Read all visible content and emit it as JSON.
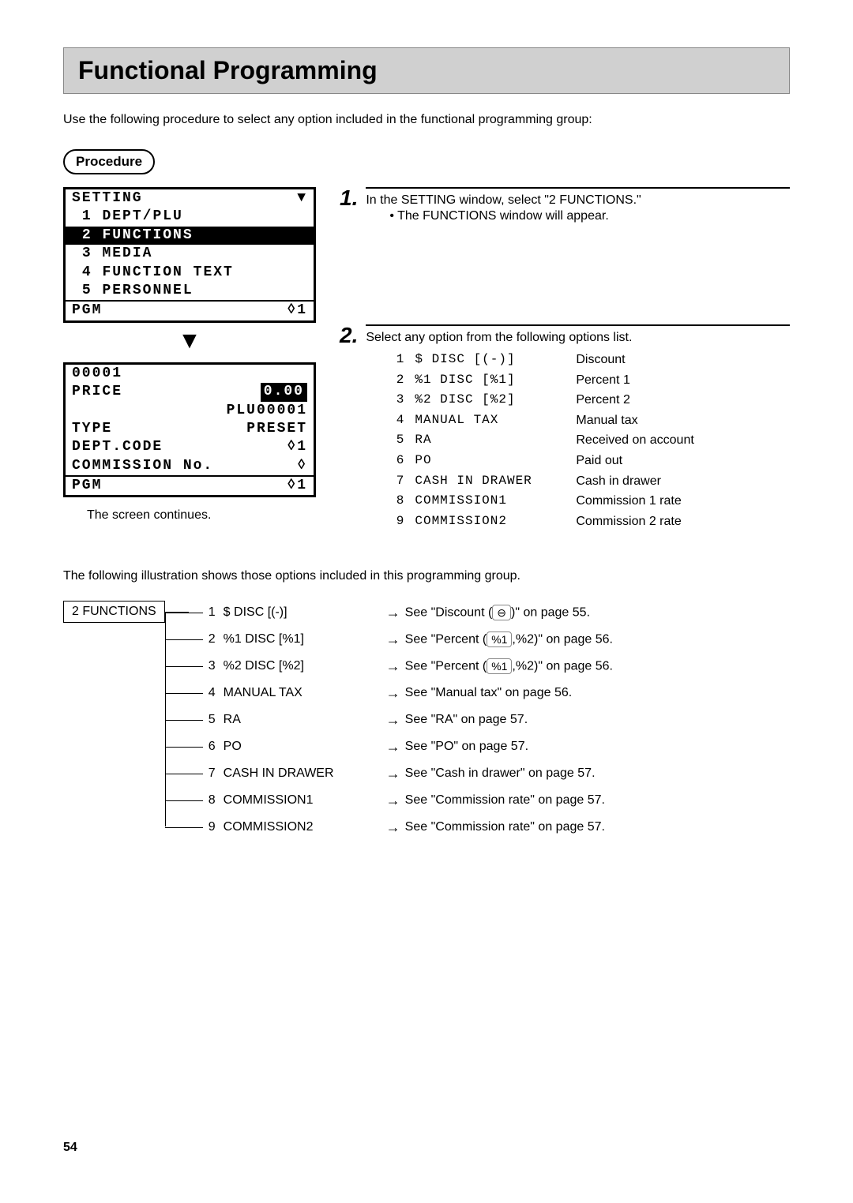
{
  "header": {
    "title": "Functional Programming"
  },
  "intro": "Use the following procedure to select any option included in the functional programming group:",
  "procedure_label": "Procedure",
  "lcd1": {
    "title": "SETTING",
    "arrow_down": "▼",
    "lines": [
      {
        "num": "1",
        "text": "DEPT/PLU",
        "inverse": false
      },
      {
        "num": "2",
        "text": "FUNCTIONS",
        "inverse": true
      },
      {
        "num": "3",
        "text": "MEDIA",
        "inverse": false
      },
      {
        "num": "4",
        "text": "FUNCTION TEXT",
        "inverse": false
      },
      {
        "num": "5",
        "text": "PERSONNEL",
        "inverse": false
      }
    ],
    "footer_left": "PGM",
    "footer_right": "◊1"
  },
  "triangle": "▼",
  "lcd2": {
    "row1_left": "00001",
    "row2_left": "PRICE",
    "row2_right": "0.00",
    "row3_right": "PLU00001",
    "row4_left": "TYPE",
    "row4_right": "PRESET",
    "row5_left": "DEPT.CODE",
    "row5_right": "◊1",
    "row6_left": "COMMISSION No.",
    "row6_right": "◊",
    "footer_left": "PGM",
    "footer_right": "◊1"
  },
  "screen_note": "The screen continues.",
  "step1": {
    "num": "1.",
    "text": "In the SETTING window, select \"2 FUNCTIONS.\"",
    "sub": "• The FUNCTIONS window will appear."
  },
  "step2": {
    "num": "2.",
    "text": "Select any option from the following options list.",
    "options": [
      {
        "idx": "1",
        "code": "$ DISC [(-)]",
        "desc": "Discount"
      },
      {
        "idx": "2",
        "code": "%1 DISC [%1]",
        "desc": "Percent 1"
      },
      {
        "idx": "3",
        "code": "%2 DISC [%2]",
        "desc": "Percent 2"
      },
      {
        "idx": "4",
        "code": "MANUAL TAX",
        "desc": "Manual tax"
      },
      {
        "idx": "5",
        "code": "RA",
        "desc": "Received on account"
      },
      {
        "idx": "6",
        "code": "PO",
        "desc": "Paid out"
      },
      {
        "idx": "7",
        "code": "CASH IN DRAWER",
        "desc": "Cash in drawer"
      },
      {
        "idx": "8",
        "code": "COMMISSION1",
        "desc": "Commission 1 rate"
      },
      {
        "idx": "9",
        "code": "COMMISSION2",
        "desc": "Commission 2 rate"
      }
    ]
  },
  "illus_intro": "The following illustration shows those options included in this programming group.",
  "illus_box": "2 FUNCTIONS",
  "tree": [
    {
      "idx": "1",
      "label": "$ DISC [(-)]",
      "ref_pre": "See \"Discount (",
      "key": "⊖",
      "ref_post": ")\" on page 55."
    },
    {
      "idx": "2",
      "label": "%1 DISC [%1]",
      "ref_pre": "See \"Percent (",
      "key": "%1",
      "ref_post": ",%2)\" on page 56."
    },
    {
      "idx": "3",
      "label": "%2 DISC [%2]",
      "ref_pre": "See \"Percent (",
      "key": "%1",
      "ref_post": ",%2)\" on page 56."
    },
    {
      "idx": "4",
      "label": "MANUAL TAX",
      "ref_pre": "See \"Manual tax\" on page 56.",
      "key": "",
      "ref_post": ""
    },
    {
      "idx": "5",
      "label": "RA",
      "ref_pre": "See \"RA\" on page 57.",
      "key": "",
      "ref_post": ""
    },
    {
      "idx": "6",
      "label": "PO",
      "ref_pre": "See \"PO\" on page 57.",
      "key": "",
      "ref_post": ""
    },
    {
      "idx": "7",
      "label": "CASH IN DRAWER",
      "ref_pre": "See \"Cash in drawer\" on page 57.",
      "key": "",
      "ref_post": ""
    },
    {
      "idx": "8",
      "label": "COMMISSION1",
      "ref_pre": "See \"Commission rate\" on page 57.",
      "key": "",
      "ref_post": ""
    },
    {
      "idx": "9",
      "label": "COMMISSION2",
      "ref_pre": "See \"Commission rate\" on page 57.",
      "key": "",
      "ref_post": ""
    }
  ],
  "page_number": "54"
}
